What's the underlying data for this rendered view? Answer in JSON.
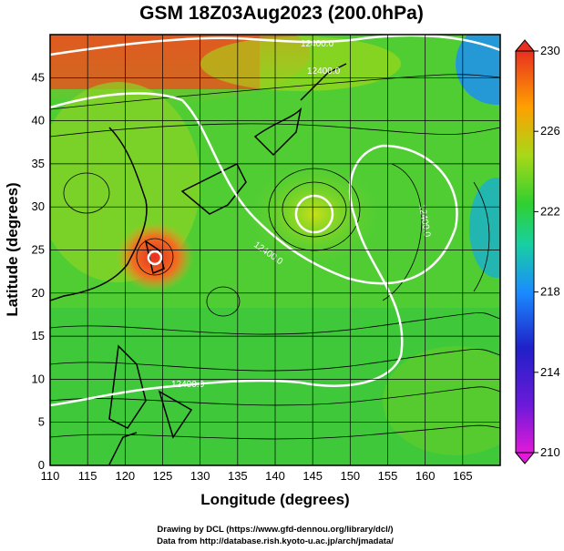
{
  "title": "GSM 18Z03Aug2023 (200.0hPa)",
  "x_axis": {
    "label": "Longitude (degrees)",
    "range": [
      110,
      170
    ],
    "ticks": [
      "110",
      "115",
      "120",
      "125",
      "130",
      "135",
      "140",
      "145",
      "150",
      "155",
      "160",
      "165"
    ]
  },
  "y_axis": {
    "label": "Latitude  (degrees)",
    "range": [
      0,
      50
    ],
    "ticks": [
      "0",
      "5",
      "10",
      "15",
      "20",
      "25",
      "30",
      "35",
      "40",
      "45"
    ]
  },
  "colorbar": {
    "range": [
      210,
      230
    ],
    "tick_labels": [
      "210",
      "214",
      "218",
      "222",
      "226",
      "230"
    ],
    "colors": [
      "#e01ad8",
      "#2020c8",
      "#1a8cff",
      "#18d0a0",
      "#30d030",
      "#a8d818",
      "#ffa000",
      "#e83020"
    ]
  },
  "contours": {
    "label_value": "12400.0",
    "labels": [
      "12400.0",
      "12400.0",
      "12400.0",
      "12400.0",
      "12400.0"
    ],
    "color": "#ffffff"
  },
  "credits": {
    "line1": "Drawing by DCL (https://www.gfd-dennou.org/library/dcl/)",
    "line2": "Data from http://database.rish.kyoto-u.ac.jp/arch/jmadata/"
  }
}
